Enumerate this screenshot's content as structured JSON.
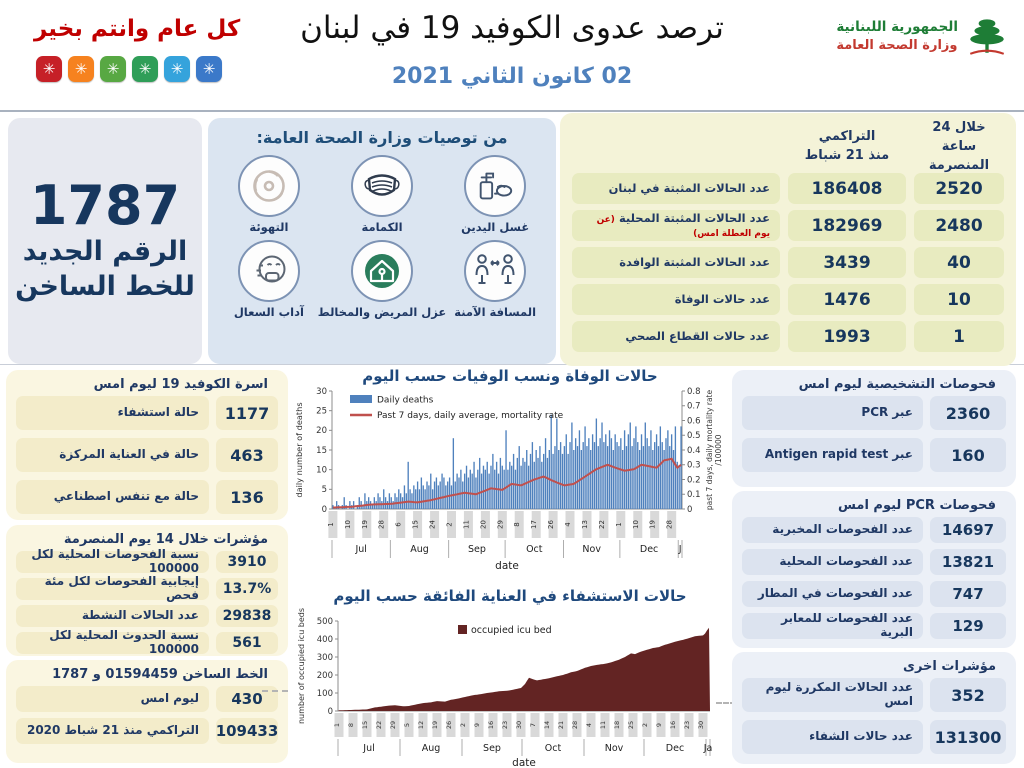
{
  "header": {
    "greeting": "كل عام وانتم بخير",
    "greeting_tiles": {
      "glyph": "✳",
      "icon": "snowflake",
      "colors": [
        "#c62027",
        "#f6821f",
        "#58a843",
        "#2f9e58",
        "#35a3dc",
        "#3b79c9"
      ]
    },
    "title": "ترصد عدوى الكوفيد 19 في لبنان",
    "date": "02 كانون الثاني 2021",
    "logo": {
      "line1": "الجمهورية اللبنانية",
      "line2": "وزارة الصحة العامة"
    }
  },
  "hotline_big": {
    "number": "1787",
    "line1": "الرقم الجديد",
    "line2": "للخط الساخن"
  },
  "recommendations": {
    "title": "من توصيات وزارة الصحة العامة:",
    "items": [
      {
        "label": "غسل اليدين",
        "icon": "hand-sanitizer"
      },
      {
        "label": "الكمامة",
        "icon": "face-mask"
      },
      {
        "label": "التهوئة",
        "icon": "ventilation-fan"
      },
      {
        "label": "المسافة الآمنة",
        "icon": "physical-distance"
      },
      {
        "label": "عزل المريض والمخالط",
        "icon": "home-isolation"
      },
      {
        "label": "آداب السعال",
        "icon": "cough-etiquette"
      }
    ]
  },
  "cumulative_table": {
    "col_cumulative_header": "التراكمي\nمنذ 21 شباط",
    "col_24h_header": "خلال 24 ساعة\nالمنصرمة",
    "rows": [
      {
        "label": "عدد الحالات المثبتة في لبنان",
        "note": "",
        "cumulative": "186408",
        "last24h": "2520"
      },
      {
        "label": "عدد الحالات المثبتة المحلية",
        "note": "(عن يوم العطلة امس)",
        "cumulative": "182969",
        "last24h": "2480"
      },
      {
        "label": "عدد الحالات المثبتة الوافدة",
        "note": "",
        "cumulative": "3439",
        "last24h": "40"
      },
      {
        "label": "عدد حالات الوفاة",
        "note": "",
        "cumulative": "1476",
        "last24h": "10"
      },
      {
        "label": "عدد حالات القطاع الصحي",
        "note": "",
        "cumulative": "1993",
        "last24h": "1"
      }
    ]
  },
  "covid_beds": {
    "title": "اسرة الكوفيد 19 ليوم امس",
    "rows": [
      {
        "label": "حالة استشفاء",
        "value": "1177"
      },
      {
        "label": "حالة في العناية المركزة",
        "value": "463"
      },
      {
        "label": "حالة مع تنفس اصطناعي",
        "value": "136"
      }
    ]
  },
  "indicators_14d": {
    "title": "مؤشرات خلال 14 يوم المنصرمة",
    "rows": [
      {
        "label": "نسبة الفحوصات  المحلية لكل 100000",
        "value": "3910"
      },
      {
        "label": "إيجابية الفحوصات لكل مئة فحص",
        "value": "13.7%"
      },
      {
        "label": "عدد الحالات النشطة",
        "value": "29838"
      },
      {
        "label": "نسبة الحدوث المحلية لكل 100000",
        "value": "561"
      }
    ]
  },
  "hotline_stats": {
    "title": "الخط الساخن 01594459 و 1787",
    "rows": [
      {
        "label": "ليوم امس",
        "value": "430"
      },
      {
        "label": "التراكمي منذ 21 شباط 2020",
        "value": "109433"
      }
    ]
  },
  "diagnostics": {
    "title": "فحوصات التشخيصية ليوم امس",
    "rows": [
      {
        "label": "عبر PCR",
        "value": "2360"
      },
      {
        "label": "عبر Antigen rapid test",
        "value": "160"
      }
    ]
  },
  "pcr_tests": {
    "title": "فحوصات  PCR  ليوم امس",
    "rows": [
      {
        "label": "عدد الفحوصات المخبرية",
        "value": "14697"
      },
      {
        "label": "عدد الفحوصات المحلية",
        "value": "13821"
      },
      {
        "label": "عدد الفحوصات في المطار",
        "value": "747"
      },
      {
        "label": "عدد الفحوصات للمعابر البرية",
        "value": "129"
      }
    ]
  },
  "other_indicators": {
    "title": "مؤشرات اخرى",
    "rows": [
      {
        "label": "عدد الحالات المكررة  ليوم امس",
        "value": "352"
      },
      {
        "label": "عدد حالات الشفاء",
        "value": "131300"
      }
    ]
  },
  "chart_data": [
    {
      "type": "bar",
      "subtype": "bar+line dual axis",
      "title": "حالات الوفاة ونسب الوفيات حسب اليوم",
      "legend": [
        "Daily deaths",
        "Past 7 days, daily average, mortality rate"
      ],
      "legend_position": "top-left inside",
      "bar_color": "#4f81bd",
      "line_color": "#c0504d",
      "ylabel_left": "daily number of deaths",
      "ylabel_right_line1": "past 7 days, daily mortality rate",
      "ylabel_right_line2": "/100000",
      "xlabel": "date",
      "ylim_left": [
        0,
        30
      ],
      "yticks_left": [
        0,
        5,
        10,
        15,
        20,
        25,
        30
      ],
      "ylim_right": [
        0,
        0.8
      ],
      "yticks_right": [
        0,
        0.1,
        0.2,
        0.3,
        0.4,
        0.5,
        0.6,
        0.7,
        0.8
      ],
      "x_range": "Jul 1 2020 - Jan 2 2021",
      "xtick_step_days": 9,
      "xtick_labels": [
        "1",
        "10",
        "19",
        "28",
        "6",
        "15",
        "24",
        "2",
        "11",
        "20",
        "29",
        "8",
        "17",
        "26",
        "4",
        "13",
        "22",
        "1",
        "10",
        "19",
        "28"
      ],
      "months": [
        {
          "label": "Jul",
          "days": 31
        },
        {
          "label": "Aug",
          "days": 31
        },
        {
          "label": "Sep",
          "days": 30
        },
        {
          "label": "Oct",
          "days": 31
        },
        {
          "label": "Nov",
          "days": 30
        },
        {
          "label": "Dec",
          "days": 31
        },
        {
          "label": "J",
          "days": 2
        }
      ],
      "daily_deaths": [
        1,
        0,
        2,
        1,
        0,
        1,
        3,
        1,
        0,
        2,
        1,
        2,
        0,
        1,
        3,
        2,
        1,
        4,
        2,
        3,
        2,
        1,
        3,
        2,
        4,
        3,
        2,
        5,
        3,
        2,
        4,
        3,
        2,
        4,
        3,
        5,
        4,
        3,
        6,
        4,
        12,
        5,
        4,
        6,
        5,
        7,
        5,
        8,
        6,
        5,
        7,
        6,
        9,
        5,
        7,
        8,
        6,
        7,
        9,
        8,
        6,
        7,
        8,
        6,
        18,
        7,
        9,
        8,
        10,
        7,
        9,
        11,
        8,
        10,
        9,
        12,
        8,
        10,
        13,
        9,
        11,
        10,
        12,
        9,
        11,
        14,
        10,
        12,
        9,
        13,
        11,
        10,
        20,
        10,
        12,
        11,
        14,
        10,
        13,
        16,
        11,
        13,
        12,
        15,
        11,
        14,
        17,
        12,
        15,
        13,
        16,
        12,
        14,
        18,
        13,
        15,
        24,
        14,
        16,
        23,
        15,
        17,
        14,
        16,
        19,
        14,
        17,
        22,
        15,
        18,
        16,
        20,
        15,
        17,
        21,
        16,
        18,
        15,
        19,
        17,
        23,
        16,
        18,
        22,
        17,
        19,
        16,
        20,
        18,
        15,
        19,
        17,
        16,
        18,
        15,
        20,
        16,
        19,
        22,
        16,
        18,
        21,
        17,
        15,
        19,
        16,
        22,
        18,
        16,
        20,
        15,
        17,
        19,
        16,
        21,
        17,
        15,
        18,
        20,
        16,
        19,
        15,
        21,
        12,
        11,
        21
      ],
      "mortality_rate_7d_per_100k": {
        "days": [
          0,
          10,
          20,
          31,
          40,
          45,
          52,
          62,
          70,
          76,
          84,
          90,
          95,
          100,
          107,
          112,
          117,
          123,
          128,
          134,
          140,
          146,
          150,
          155,
          160,
          164,
          168,
          172,
          176,
          180,
          183,
          185
        ],
        "values": [
          0.01,
          0.015,
          0.03,
          0.035,
          0.05,
          0.045,
          0.06,
          0.09,
          0.11,
          0.1,
          0.14,
          0.13,
          0.17,
          0.16,
          0.2,
          0.22,
          0.19,
          0.16,
          0.17,
          0.22,
          0.27,
          0.3,
          0.28,
          0.26,
          0.27,
          0.3,
          0.29,
          0.28,
          0.33,
          0.34,
          0.28,
          0.3
        ]
      }
    },
    {
      "type": "area",
      "title": "حالات الاستشفاء في العناية الفائقة حسب اليوم",
      "legend": [
        "occupied icu bed"
      ],
      "legend_position": "top-center inside",
      "color": "#632423",
      "ylabel": "number of occupied icu beds",
      "xlabel": "date",
      "ylim": [
        0,
        500
      ],
      "yticks": [
        0,
        100,
        200,
        300,
        400,
        500
      ],
      "x_range": "Jul 1 2020 - Jan 2 2021",
      "xtick_step_days": 7,
      "xtick_labels": [
        "1",
        "8",
        "15",
        "22",
        "29",
        "5",
        "12",
        "19",
        "26",
        "2",
        "9",
        "16",
        "23",
        "30",
        "7",
        "14",
        "21",
        "28",
        "4",
        "11",
        "18",
        "25",
        "2",
        "9",
        "16",
        "23",
        "30"
      ],
      "months": [
        {
          "label": "Jul",
          "days": 31
        },
        {
          "label": "Aug",
          "days": 31
        },
        {
          "label": "Sep",
          "days": 30
        },
        {
          "label": "Oct",
          "days": 31
        },
        {
          "label": "Nov",
          "days": 30
        },
        {
          "label": "Dec",
          "days": 31
        },
        {
          "label": "Ja",
          "days": 2
        }
      ],
      "occupied_icu_beds": {
        "days": [
          0,
          7,
          14,
          18,
          21,
          25,
          28,
          32,
          35,
          42,
          46,
          49,
          53,
          56,
          60,
          63,
          67,
          70,
          74,
          77,
          80,
          84,
          87,
          91,
          93,
          95,
          97,
          99,
          103,
          105,
          108,
          112,
          116,
          119,
          123,
          126,
          130,
          133,
          136,
          140,
          143,
          146,
          148,
          151,
          154,
          157,
          160,
          163,
          166,
          169,
          172,
          175,
          178,
          180,
          182,
          183,
          184,
          185
        ],
        "values": [
          4,
          6,
          9,
          20,
          24,
          30,
          32,
          26,
          28,
          44,
          48,
          55,
          52,
          62,
          70,
          78,
          88,
          92,
          100,
          104,
          110,
          112,
          118,
          128,
          150,
          185,
          176,
          170,
          178,
          182,
          190,
          200,
          215,
          222,
          240,
          250,
          258,
          262,
          270,
          285,
          300,
          320,
          316,
          330,
          340,
          350,
          355,
          368,
          378,
          388,
          395,
          405,
          415,
          418,
          420,
          430,
          448,
          462
        ]
      }
    }
  ]
}
